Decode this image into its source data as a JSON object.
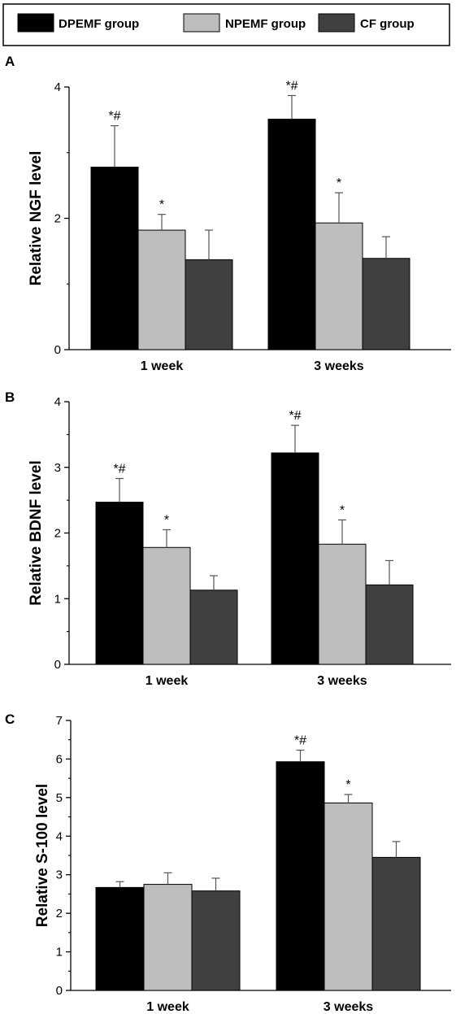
{
  "legend": {
    "entries": [
      {
        "label": "DPEMF group",
        "color": "#000000"
      },
      {
        "label": "NPEMF group",
        "color": "#bebebe"
      },
      {
        "label": "CF group",
        "color": "#404040"
      }
    ]
  },
  "chart_data": [
    {
      "type": "bar",
      "panel": "A",
      "ylabel": "Relative NGF level",
      "categories": [
        "1 week",
        "3 weeks"
      ],
      "ylim": [
        0,
        4
      ],
      "yticks": [
        0,
        2,
        4
      ],
      "series": [
        {
          "name": "DPEMF group",
          "values": [
            2.78,
            3.51
          ],
          "errors": [
            0.63,
            0.36
          ],
          "labels": [
            "*#",
            "*#"
          ]
        },
        {
          "name": "NPEMF group",
          "values": [
            1.82,
            1.93
          ],
          "errors": [
            0.24,
            0.46
          ],
          "labels": [
            "*",
            "*"
          ]
        },
        {
          "name": "CF group",
          "values": [
            1.37,
            1.39
          ],
          "errors": [
            0.45,
            0.33
          ],
          "labels": [
            "",
            ""
          ]
        }
      ]
    },
    {
      "type": "bar",
      "panel": "B",
      "ylabel": "Relative BDNF level",
      "categories": [
        "1 week",
        "3 weeks"
      ],
      "ylim": [
        0,
        4
      ],
      "yticks": [
        0,
        1,
        2,
        3,
        4
      ],
      "series": [
        {
          "name": "DPEMF group",
          "values": [
            2.47,
            3.22
          ],
          "errors": [
            0.36,
            0.42
          ],
          "labels": [
            "*#",
            "*#"
          ]
        },
        {
          "name": "NPEMF group",
          "values": [
            1.78,
            1.83
          ],
          "errors": [
            0.27,
            0.37
          ],
          "labels": [
            "*",
            "*"
          ]
        },
        {
          "name": "CF group",
          "values": [
            1.13,
            1.21
          ],
          "errors": [
            0.22,
            0.37
          ],
          "labels": [
            "",
            ""
          ]
        }
      ]
    },
    {
      "type": "bar",
      "panel": "C",
      "ylabel": "Relative S-100 level",
      "categories": [
        "1 week",
        "3 weeks"
      ],
      "ylim": [
        0,
        7
      ],
      "yticks": [
        0,
        1,
        2,
        3,
        4,
        5,
        6,
        7
      ],
      "series": [
        {
          "name": "DPEMF group",
          "values": [
            2.67,
            5.93
          ],
          "errors": [
            0.15,
            0.3
          ],
          "labels": [
            "",
            "*#"
          ]
        },
        {
          "name": "NPEMF group",
          "values": [
            2.75,
            4.86
          ],
          "errors": [
            0.3,
            0.22
          ],
          "labels": [
            "",
            "*"
          ]
        },
        {
          "name": "CF group",
          "values": [
            2.58,
            3.45
          ],
          "errors": [
            0.33,
            0.41
          ],
          "labels": [
            "",
            ""
          ]
        }
      ]
    }
  ]
}
